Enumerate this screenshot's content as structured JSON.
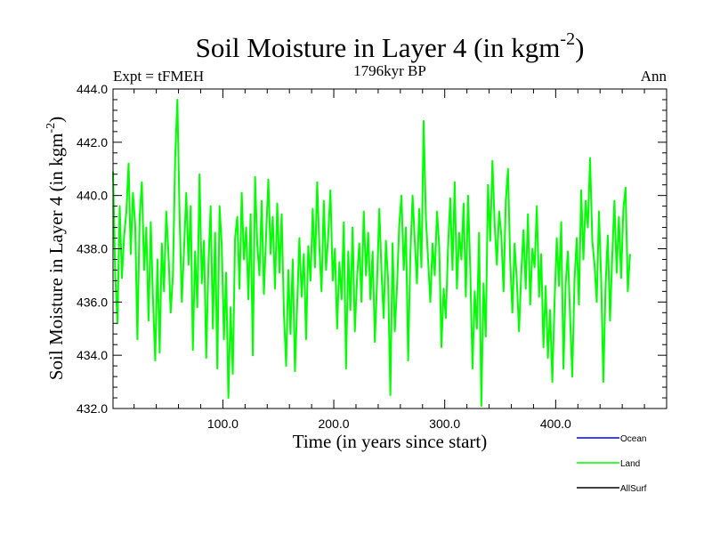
{
  "chart_data": {
    "type": "line",
    "title": "Soil Moisture in Layer 4 (in kgm",
    "title_superscript": "-2",
    "title_close": ")",
    "subtitle": "1796kyr BP",
    "left_label": "Expt = tFMEH",
    "right_label": "Ann",
    "xlabel": "Time (in years since start)",
    "ylabel": "Soil Moisture in Layer 4 (in kgm",
    "ylabel_superscript": "-2",
    "ylabel_close": ")",
    "xlim": [
      1,
      500
    ],
    "ylim": [
      432.0,
      444.0
    ],
    "x_ticks": [
      100,
      200,
      300,
      400
    ],
    "x_tick_labels": [
      "100.0",
      "200.0",
      "300.0",
      "400.0"
    ],
    "y_ticks": [
      432,
      434,
      436,
      438,
      440,
      442,
      444
    ],
    "y_tick_labels": [
      "432.0",
      "434.0",
      "436.0",
      "438.0",
      "440.0",
      "442.0",
      "444.0"
    ],
    "x_start": 1,
    "x_step": 2,
    "series": [
      {
        "name": "Land",
        "color": "#00ff00",
        "values": [
          440.9,
          437.0,
          435.2,
          439.6,
          436.9,
          438.5,
          439.4,
          441.2,
          437.8,
          440.1,
          438.9,
          434.6,
          439.2,
          440.5,
          437.2,
          438.8,
          435.3,
          439.0,
          436.1,
          433.8,
          437.6,
          434.1,
          438.2,
          436.4,
          439.4,
          437.8,
          435.6,
          437.0,
          441.4,
          443.6,
          439.2,
          436.0,
          438.0,
          440.1,
          437.4,
          439.6,
          434.2,
          437.9,
          435.8,
          440.8,
          436.7,
          438.3,
          433.9,
          437.4,
          439.6,
          435.0,
          438.6,
          433.5,
          439.6,
          438.1,
          434.6,
          437.1,
          432.4,
          435.8,
          433.3,
          438.4,
          439.2,
          436.5,
          440.1,
          437.6,
          438.8,
          436.1,
          439.3,
          434.0,
          440.7,
          438.2,
          437.0,
          439.8,
          436.3,
          438.5,
          440.6,
          437.8,
          439.2,
          436.5,
          439.7,
          437.1,
          439.3,
          435.6,
          433.6,
          437.2,
          434.8,
          437.6,
          433.4,
          435.9,
          438.4,
          436.2,
          437.8,
          434.6,
          438.1,
          436.8,
          439.5,
          437.3,
          440.5,
          438.1,
          436.4,
          439.8,
          437.2,
          438.5,
          440.2,
          436.8,
          438.0,
          435.0,
          437.5,
          436.1,
          439.0,
          433.5,
          437.9,
          435.7,
          438.8,
          434.9,
          436.9,
          438.2,
          436.0,
          439.4,
          437.0,
          438.6,
          436.1,
          437.9,
          434.5,
          436.8,
          439.5,
          437.1,
          435.4,
          438.3,
          436.8,
          432.5,
          438.2,
          434.9,
          436.6,
          438.9,
          440.0,
          437.2,
          438.8,
          433.8,
          437.8,
          440.0,
          438.3,
          436.7,
          439.5,
          437.3,
          442.8,
          439.2,
          437.6,
          436.0,
          438.2,
          437.0,
          439.4,
          438.1,
          434.3,
          436.5,
          435.4,
          438.0,
          439.9,
          437.2,
          440.5,
          436.5,
          438.6,
          437.6,
          439.7,
          436.2,
          440.0,
          437.2,
          433.5,
          436.4,
          435.0,
          438.6,
          432.1,
          436.7,
          434.7,
          440.4,
          438.3,
          441.3,
          438.9,
          437.4,
          439.4,
          438.5,
          436.4,
          439.8,
          441.0,
          437.6,
          435.6,
          438.2,
          436.8,
          434.9,
          437.1,
          438.7,
          436.5,
          439.3,
          435.9,
          438.0,
          437.3,
          439.6,
          436.2,
          437.8,
          434.3,
          436.6,
          433.9,
          435.7,
          433.0,
          436.0,
          438.4,
          436.6,
          439.0,
          433.5,
          436.7,
          437.9,
          435.4,
          433.2,
          436.8,
          438.4,
          435.9,
          440.2,
          437.6,
          439.8,
          438.8,
          441.4,
          438.3,
          437.4,
          436.0,
          439.4,
          436.8,
          433.0,
          436.6,
          438.5,
          435.3,
          437.7,
          439.8,
          437.1,
          439.2,
          436.9,
          439.5,
          440.3,
          436.4,
          437.8
        ],
        "stroke_width": 2
      }
    ],
    "legend": [
      {
        "name": "Ocean",
        "color": "#0000ff"
      },
      {
        "name": "Land",
        "color": "#00ff00"
      },
      {
        "name": "AllSurf",
        "color": "#000000"
      }
    ],
    "legend_position": "bottom-right",
    "grid": false
  }
}
